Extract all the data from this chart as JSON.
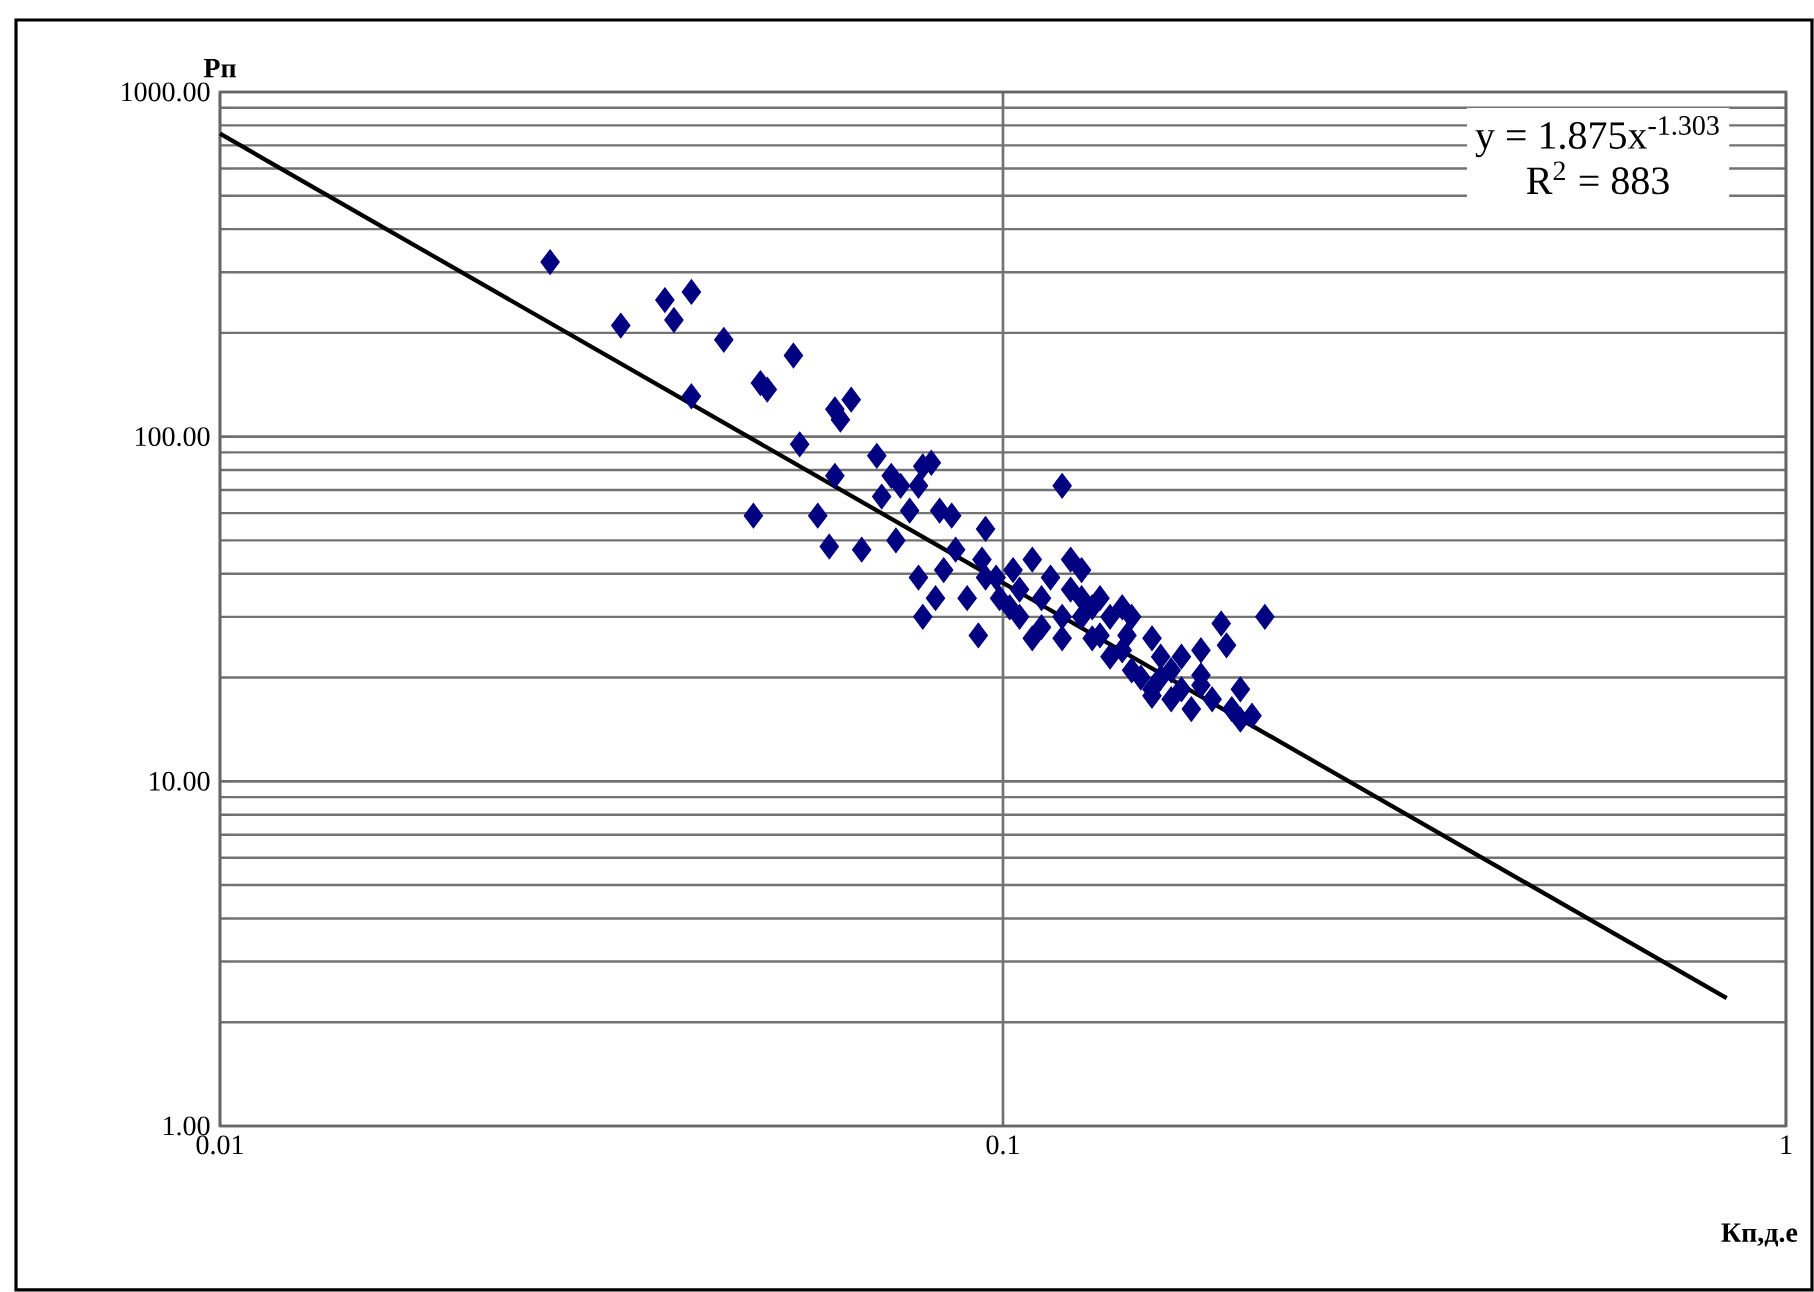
{
  "chart_data": {
    "type": "scatter",
    "xlabel": "Кп,д.е",
    "ylabel": "Рп",
    "log": "xy",
    "xlim": [
      0.01,
      1
    ],
    "ylim": [
      1,
      1000
    ],
    "xticks": [
      0.01,
      0.1,
      1
    ],
    "yticks": [
      {
        "value": 1,
        "label": "1.00"
      },
      {
        "value": 10,
        "label": "10.00"
      },
      {
        "value": 100,
        "label": "100.00"
      },
      {
        "value": 1000,
        "label": "1000.00"
      }
    ],
    "grid": true,
    "annotations": [
      "y = 1.875x$^{-1.303}$",
      "R$^{2}$ = 883"
    ],
    "series": [
      {
        "color": "#000080",
        "marker": "diamond",
        "x": [
          0.0264,
          0.0325,
          0.037,
          0.038,
          0.04,
          0.04,
          0.044,
          0.049,
          0.05,
          0.054,
          0.048,
          0.058,
          0.061,
          0.061,
          0.062,
          0.064,
          0.069,
          0.055,
          0.06,
          0.066,
          0.07,
          0.073,
          0.074,
          0.076,
          0.079,
          0.081,
          0.078,
          0.079,
          0.082,
          0.084,
          0.087,
          0.09,
          0.093,
          0.095,
          0.095,
          0.098,
          0.099,
          0.102,
          0.105,
          0.112,
          0.119,
          0.112,
          0.115,
          0.122,
          0.126,
          0.13,
          0.133,
          0.137,
          0.142,
          0.146,
          0.15,
          0.155,
          0.159,
          0.164,
          0.169,
          0.174,
          0.179,
          0.185,
          0.19,
          0.216,
          0.193,
          0.201,
          0.179,
          0.109,
          0.119,
          0.126,
          0.133,
          0.126,
          0.142,
          0.146,
          0.155,
          0.164,
          0.169,
          0.179,
          0.196,
          0.201,
          0.208,
          0.155,
          0.159,
          0.109,
          0.086,
          0.078,
          0.072,
          0.083,
          0.094,
          0.103,
          0.105,
          0.119,
          0.13,
          0.137,
          0.144,
          0.122
        ],
        "values": [
          321,
          210,
          249,
          218,
          263,
          131,
          191,
          143,
          137,
          172,
          59,
          59,
          77,
          120,
          112,
          128,
          88,
          95,
          48,
          47,
          67,
          50,
          72,
          61,
          82,
          84,
          39,
          30,
          34,
          41,
          47,
          34,
          26.5,
          54,
          39,
          39,
          34,
          32,
          30,
          28,
          72,
          34,
          39,
          36,
          30,
          26,
          26.5,
          23,
          24,
          21,
          20,
          18.5,
          20,
          17.3,
          18.5,
          16.2,
          19,
          17.3,
          28.7,
          30,
          24.8,
          18.5,
          24,
          26,
          26,
          41,
          34,
          34,
          32,
          30,
          17.7,
          21,
          23,
          20.3,
          16.2,
          15.1,
          15.5,
          26,
          23,
          44,
          59,
          72,
          77,
          61,
          44,
          41,
          36,
          30,
          32,
          30,
          26.5,
          44
        ]
      },
      {
        "type": "line",
        "color": "#000000",
        "marker": "none",
        "x": [
          0.01,
          0.84
        ],
        "values": [
          757,
          2.35
        ]
      }
    ]
  }
}
